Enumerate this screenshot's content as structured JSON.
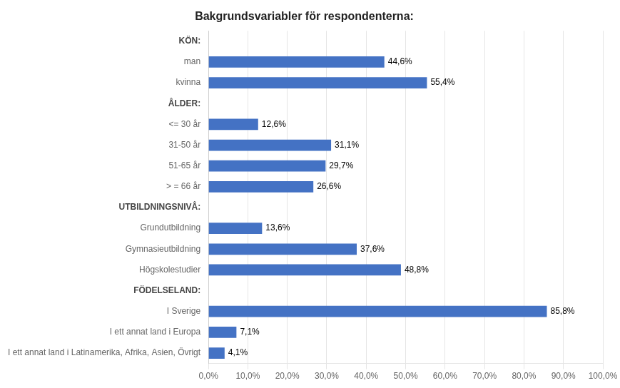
{
  "chart_data": {
    "type": "bar",
    "orientation": "horizontal",
    "title": "Bakgrundsvariabler för respondenterna:",
    "categories": [
      "KÖN:",
      "man",
      "kvinna",
      "ÅLDER:",
      "<= 30 år",
      "31-50 år",
      "51-65 år",
      "> = 66 år",
      "UTBILDNINGSNIVÅ:",
      "Grundutbildning",
      "Gymnasieutbildning",
      "Högskolestudier",
      "FÖDELSELAND:",
      "I Sverige",
      "I ett annat land i Europa",
      "I ett annat land i Latinamerika, Afrika, Asien, Övrigt"
    ],
    "values": [
      null,
      44.6,
      55.4,
      null,
      12.6,
      31.1,
      29.7,
      26.6,
      null,
      13.6,
      37.6,
      48.8,
      null,
      85.8,
      7.1,
      4.1
    ],
    "value_labels": [
      null,
      "44,6%",
      "55,4%",
      null,
      "12,6%",
      "31,1%",
      "29,7%",
      "26,6%",
      null,
      "13,6%",
      "37,6%",
      "48,8%",
      null,
      "85,8%",
      "7,1%",
      "4,1%"
    ],
    "data_labels": true,
    "color": "#4472C4",
    "xlim": [
      0,
      100
    ],
    "xticks": [
      {
        "value": 0,
        "label": "0,0%"
      },
      {
        "value": 10,
        "label": "10,0%"
      },
      {
        "value": 20,
        "label": "20,0%"
      },
      {
        "value": 30,
        "label": "30,0%"
      },
      {
        "value": 40,
        "label": "40,0%"
      },
      {
        "value": 50,
        "label": "50,0%"
      },
      {
        "value": 60,
        "label": "60,0%"
      },
      {
        "value": 70,
        "label": "70,0%"
      },
      {
        "value": 80,
        "label": "80,0%"
      },
      {
        "value": 90,
        "label": "90,0%"
      },
      {
        "value": 100,
        "label": "100,0%"
      }
    ],
    "grid": true
  }
}
